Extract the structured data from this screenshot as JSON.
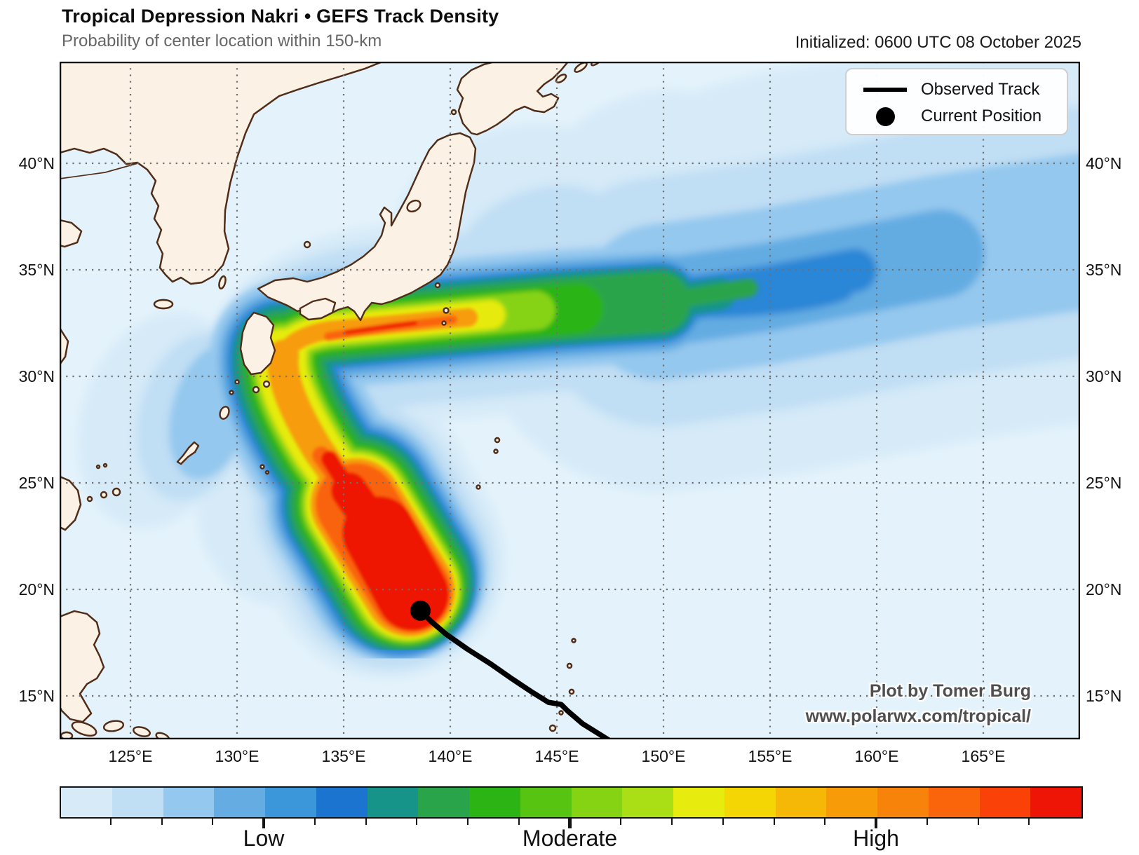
{
  "header": {
    "title": "Tropical Depression Nakri • GEFS Track Density",
    "subtitle": "Probability of center location within 150-km",
    "initialized": "Initialized: 0600 UTC 08 October 2025"
  },
  "legend": {
    "observed_track_label": "Observed Track",
    "current_position_label": "Current Position"
  },
  "map": {
    "attribution_line1": "Plot by Tomer Burg",
    "attribution_line2": "www.polarwx.com/tropical/"
  },
  "axes": {
    "lat_ticks": [
      {
        "value": 40,
        "label": "40°N"
      },
      {
        "value": 35,
        "label": "35°N"
      },
      {
        "value": 30,
        "label": "30°N"
      },
      {
        "value": 25,
        "label": "25°N"
      },
      {
        "value": 20,
        "label": "20°N"
      },
      {
        "value": 15,
        "label": "15°N"
      }
    ],
    "lon_ticks": [
      {
        "value": 125,
        "label": "125°E"
      },
      {
        "value": 130,
        "label": "130°E"
      },
      {
        "value": 135,
        "label": "135°E"
      },
      {
        "value": 140,
        "label": "140°E"
      },
      {
        "value": 145,
        "label": "145°E"
      },
      {
        "value": 150,
        "label": "150°E"
      },
      {
        "value": 155,
        "label": "155°E"
      },
      {
        "value": 160,
        "label": "160°E"
      },
      {
        "value": 165,
        "label": "165°E"
      }
    ]
  },
  "colorbar": {
    "colors": [
      "#d6eaf8",
      "#c0def4",
      "#94c8ee",
      "#64ace2",
      "#3c97da",
      "#1a74d0",
      "#17948a",
      "#2aa44b",
      "#2bb414",
      "#57c411",
      "#86d314",
      "#abdf15",
      "#e7eb0e",
      "#f4d605",
      "#f6b806",
      "#f79c08",
      "#f8830a",
      "#fa640a",
      "#f94108",
      "#ee1506"
    ],
    "labels": [
      {
        "text": "Low",
        "boundary_index": 4
      },
      {
        "text": "Moderate",
        "boundary_index": 10
      },
      {
        "text": "High",
        "boundary_index": 16
      }
    ]
  },
  "chart_data": {
    "type": "heatmap",
    "title": "Tropical Depression Nakri • GEFS Track Density",
    "subtitle": "Probability of center location within 150-km",
    "initialized": "Initialized: 0600 UTC 08 October 2025",
    "lon_range": [
      121.7,
      169.5
    ],
    "lat_range": [
      13.0,
      44.8
    ],
    "lon_gridlines": [
      125,
      130,
      135,
      140,
      145,
      150,
      155,
      160,
      165
    ],
    "lat_gridlines": [
      15,
      20,
      25,
      30,
      35,
      40
    ],
    "colorbar_categories": [
      "Low",
      "Moderate",
      "High"
    ],
    "legend_position": "top-right-inside",
    "grid": "dotted",
    "current_position": {
      "lon": 138.6,
      "lat": 19.0
    },
    "observed_track_lonlat": [
      [
        149.3,
        11.8
      ],
      [
        148.6,
        12.2
      ],
      [
        147.8,
        12.7
      ],
      [
        147.0,
        13.2
      ],
      [
        146.2,
        13.7
      ],
      [
        145.5,
        14.3
      ],
      [
        145.2,
        14.6
      ],
      [
        144.6,
        14.7
      ],
      [
        143.8,
        15.2
      ],
      [
        142.9,
        15.8
      ],
      [
        141.9,
        16.5
      ],
      [
        140.8,
        17.2
      ],
      [
        139.8,
        17.9
      ],
      [
        139.1,
        18.5
      ],
      [
        138.6,
        19.0
      ]
    ],
    "high_density_ridge_lonlat": [
      [
        138.6,
        19.0
      ],
      [
        135.6,
        24.0
      ],
      [
        133.8,
        26.5
      ],
      [
        131.9,
        29.8
      ],
      [
        133.5,
        32.0
      ],
      [
        137.0,
        32.4
      ],
      [
        141.0,
        32.8
      ],
      [
        145.0,
        33.2
      ],
      [
        150.0,
        33.5
      ],
      [
        155.0,
        34.2
      ],
      [
        160.0,
        35.0
      ],
      [
        166.0,
        36.2
      ]
    ],
    "density_levels_low_to_high": [
      "#d6eaf8",
      "#c0def4",
      "#94c8ee",
      "#64ace2",
      "#2a86d6",
      "#17948a",
      "#2aa44b",
      "#2bb414",
      "#86d314",
      "#e7eb0e",
      "#f79c08",
      "#fa640a",
      "#ee1506"
    ]
  }
}
